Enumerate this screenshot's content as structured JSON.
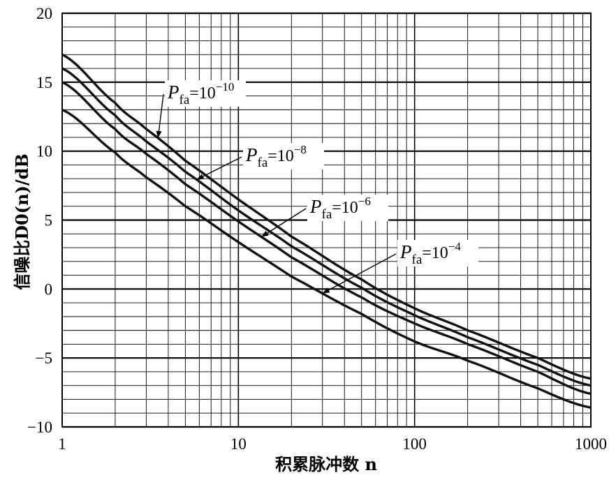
{
  "chart_data": {
    "type": "line",
    "xlabel": "积累脉冲数 n",
    "ylabel": "信噪比D0(n)/dB",
    "xscale": "log",
    "xlim": [
      1,
      1000
    ],
    "ylim": [
      -10,
      20
    ],
    "grid": true,
    "x_ticks": [
      "1",
      "10",
      "100",
      "1000"
    ],
    "y_ticks": [
      "20",
      "15",
      "10",
      "5",
      "0",
      "−5",
      "−10"
    ],
    "series": [
      {
        "name": "Pfa=10^-10",
        "label_main": "P",
        "label_sub": "fa",
        "label_eq": "=10",
        "label_exp": "−10",
        "x": [
          1,
          2,
          3,
          5,
          10,
          20,
          50,
          100,
          200,
          500,
          1000
        ],
        "values": [
          17.0,
          13.5,
          11.6,
          9.3,
          6.5,
          3.8,
          0.7,
          -1.4,
          -3.0,
          -5.0,
          -6.5
        ]
      },
      {
        "name": "Pfa=10^-8",
        "label_main": "P",
        "label_sub": "fa",
        "label_eq": "=10",
        "label_exp": "−8",
        "x": [
          1,
          2,
          3,
          5,
          10,
          20,
          50,
          100,
          200,
          500,
          1000
        ],
        "values": [
          16.0,
          12.6,
          10.7,
          8.5,
          5.7,
          3.1,
          0.1,
          -1.9,
          -3.5,
          -5.5,
          -7.0
        ]
      },
      {
        "name": "Pfa=10^-6",
        "label_main": "P",
        "label_sub": "fa",
        "label_eq": "=10",
        "label_exp": "−6",
        "x": [
          1,
          2,
          3,
          5,
          10,
          20,
          50,
          100,
          200,
          500,
          1000
        ],
        "values": [
          15.0,
          11.6,
          9.8,
          7.6,
          4.9,
          2.3,
          -0.6,
          -2.5,
          -4.0,
          -6.0,
          -7.6
        ]
      },
      {
        "name": "Pfa=10^-4",
        "label_main": "P",
        "label_sub": "fa",
        "label_eq": "=10",
        "label_exp": "−4",
        "x": [
          1,
          2,
          3,
          5,
          10,
          20,
          50,
          100,
          200,
          500,
          1000
        ],
        "values": [
          13.0,
          9.9,
          8.1,
          6.0,
          3.4,
          0.9,
          -1.8,
          -3.8,
          -5.2,
          -7.2,
          -8.6
        ]
      }
    ]
  }
}
